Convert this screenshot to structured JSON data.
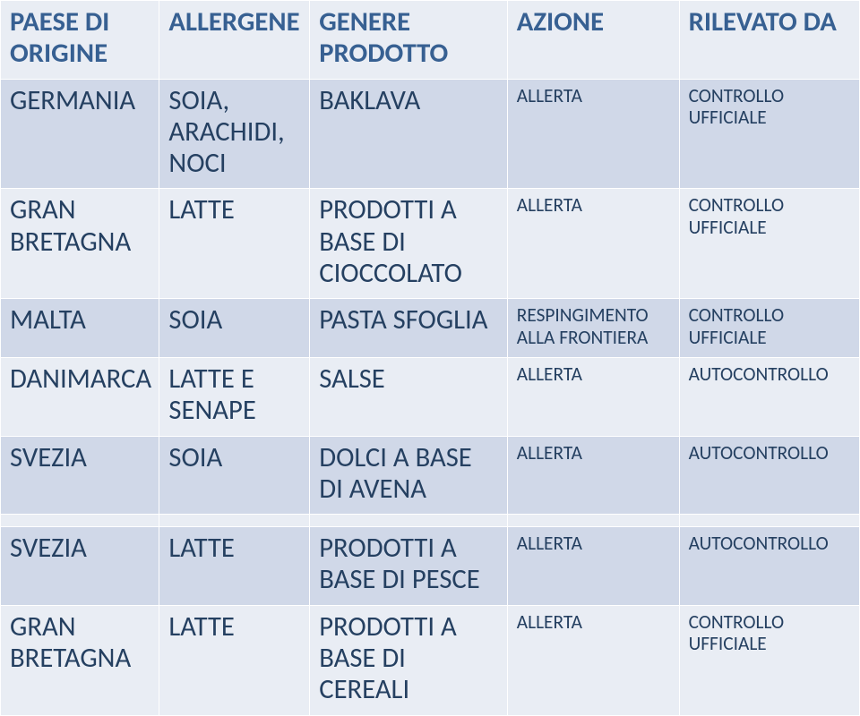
{
  "style": {
    "row_bg_alt1": "#e9edf4",
    "row_bg_alt2": "#d0d8e8",
    "border_color": "#ffffff",
    "header_text_color": "#376092",
    "body_text_color": "#254061",
    "header_fontsize_pt": 23,
    "body_large_fontsize_pt": 23,
    "body_small_fontsize_pt": 16
  },
  "columns": [
    "PAESE DI ORIGINE",
    "ALLERGENE",
    "GENERE PRODOTTO",
    "AZIONE",
    "RILEVATO DA"
  ],
  "rows": [
    {
      "paese": "GERMANIA",
      "allergene": "SOIA, ARACHIDI, NOCI",
      "prodotto": "BAKLAVA",
      "azione": "ALLERTA",
      "rilevato": "CONTROLLO UFFICIALE"
    },
    {
      "paese": "GRAN BRETAGNA",
      "allergene": "LATTE",
      "prodotto": "PRODOTTI A BASE DI CIOCCOLATO",
      "azione": "ALLERTA",
      "rilevato": "CONTROLLO UFFICIALE"
    },
    {
      "paese": "MALTA",
      "allergene": "SOIA",
      "prodotto": "PASTA SFOGLIA",
      "azione": "RESPINGIMENTO ALLA FRONTIERA",
      "rilevato": "CONTROLLO UFFICIALE"
    },
    {
      "paese": "DANIMARCA",
      "allergene": "LATTE E SENAPE",
      "prodotto": "SALSE",
      "azione": "ALLERTA",
      "rilevato": "AUTOCONTROLLO"
    },
    {
      "paese": "SVEZIA",
      "allergene": "SOIA",
      "prodotto": "DOLCI A BASE DI AVENA",
      "azione": "ALLERTA",
      "rilevato": "AUTOCONTROLLO"
    }
  ],
  "rows2": [
    {
      "paese": "SVEZIA",
      "allergene": "LATTE",
      "prodotto": "PRODOTTI A BASE DI PESCE",
      "azione": "ALLERTA",
      "rilevato": "AUTOCONTROLLO"
    },
    {
      "paese": "GRAN BRETAGNA",
      "allergene": "LATTE",
      "prodotto": "PRODOTTI A BASE DI CEREALI",
      "azione": "ALLERTA",
      "rilevato": "CONTROLLO UFFICIALE"
    }
  ]
}
